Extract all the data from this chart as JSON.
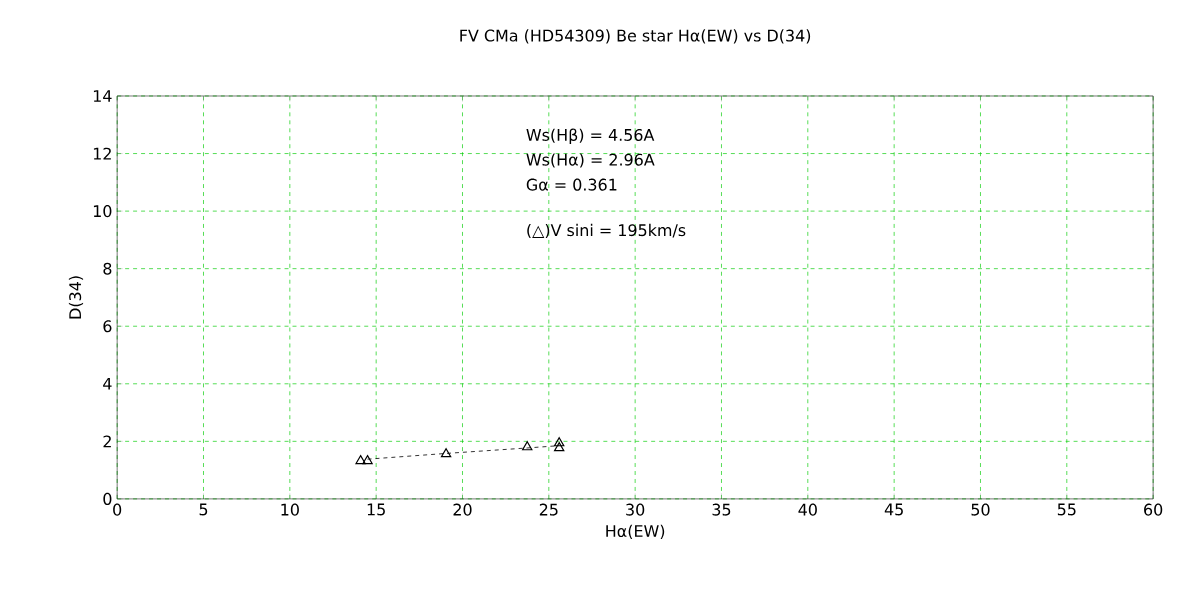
{
  "chart_data": {
    "type": "scatter",
    "title": "FV CMa (HD54309)   Be star   Hα(EW) vs D(34)",
    "xlabel": "Hα(EW)",
    "ylabel": "D(34)",
    "annotations": [
      "Ws(Hβ) = 4.56A",
      "Ws(Hα) = 2.96A",
      "Gα = 0.361",
      "(△)V sini = 195km/s"
    ],
    "series": [
      {
        "color": "#000000",
        "marker": "triangle",
        "x": [
          14.1,
          14.5,
          19.05,
          23.75,
          25.6,
          25.6
        ],
        "values": [
          1.32,
          1.32,
          1.56,
          1.8,
          1.94,
          1.77
        ]
      },
      {
        "type": "line",
        "color": "#000000",
        "line_style": "dashed",
        "marker": "none",
        "x": [
          14.5,
          19.05,
          23.75,
          25.6
        ],
        "values": [
          1.38,
          1.58,
          1.77,
          1.85
        ]
      }
    ],
    "xlim": [
      0,
      60
    ],
    "xticks": [
      0,
      5,
      10,
      15,
      20,
      25,
      30,
      35,
      40,
      45,
      50,
      55,
      60
    ],
    "ylim": [
      0,
      14
    ],
    "yticks": [
      0,
      2,
      4,
      6,
      8,
      10,
      12,
      14
    ],
    "grid": true
  }
}
